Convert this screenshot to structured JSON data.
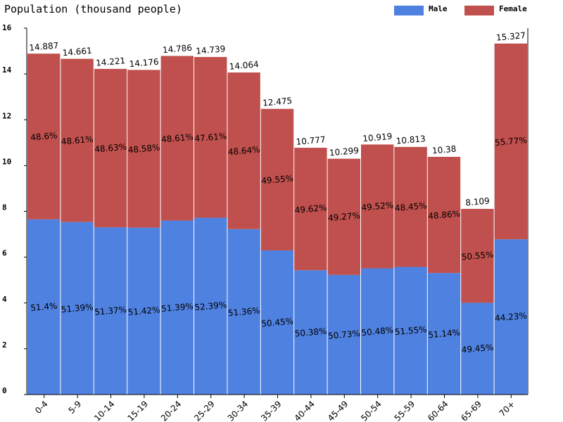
{
  "chart_data": {
    "type": "bar",
    "stacked": true,
    "title": "Population (thousand people)",
    "xlabel": "",
    "ylabel": "",
    "ylim": [
      0,
      16
    ],
    "yticks": [
      "0",
      "2",
      "4",
      "6",
      "8",
      "10",
      "12",
      "14",
      "16"
    ],
    "grid": false,
    "legend_position": "top-right",
    "categories": [
      "0-4",
      "5-9",
      "10-14",
      "15-19",
      "20-24",
      "25-29",
      "30-34",
      "35-39",
      "40-44",
      "45-49",
      "50-54",
      "55-59",
      "60-64",
      "65-69",
      "70+"
    ],
    "totals": [
      14.887,
      14.661,
      14.221,
      14.176,
      14.786,
      14.739,
      14.064,
      12.475,
      10.777,
      10.299,
      10.919,
      10.813,
      10.38,
      8.109,
      15.327
    ],
    "total_labels": [
      "14.887",
      "14.661",
      "14.221",
      "14.176",
      "14.786",
      "14.739",
      "14.064",
      "12.475",
      "10.777",
      "10.299",
      "10.919",
      "10.813",
      "10.38",
      "8.109",
      "15.327"
    ],
    "series": [
      {
        "name": "Male",
        "color": "#4f81e0",
        "percent": [
          51.4,
          51.39,
          51.37,
          51.42,
          51.39,
          52.39,
          51.36,
          50.45,
          50.38,
          50.73,
          50.48,
          51.55,
          51.14,
          49.45,
          44.23
        ],
        "percent_labels": [
          "51.4%",
          "51.39%",
          "51.37%",
          "51.42%",
          "51.39%",
          "52.39%",
          "51.36%",
          "50.45%",
          "50.38%",
          "50.73%",
          "50.48%",
          "51.55%",
          "51.14%",
          "49.45%",
          "44.23%"
        ]
      },
      {
        "name": "Female",
        "color": "#c0504d",
        "percent": [
          48.6,
          48.61,
          48.63,
          48.58,
          48.61,
          47.61,
          48.64,
          49.55,
          49.62,
          49.27,
          49.52,
          48.45,
          48.86,
          50.55,
          55.77
        ],
        "percent_labels": [
          "48.6%",
          "48.61%",
          "48.63%",
          "48.58%",
          "48.61%",
          "47.61%",
          "48.64%",
          "49.55%",
          "49.62%",
          "49.27%",
          "49.52%",
          "48.45%",
          "48.86%",
          "50.55%",
          "55.77%"
        ]
      }
    ]
  }
}
